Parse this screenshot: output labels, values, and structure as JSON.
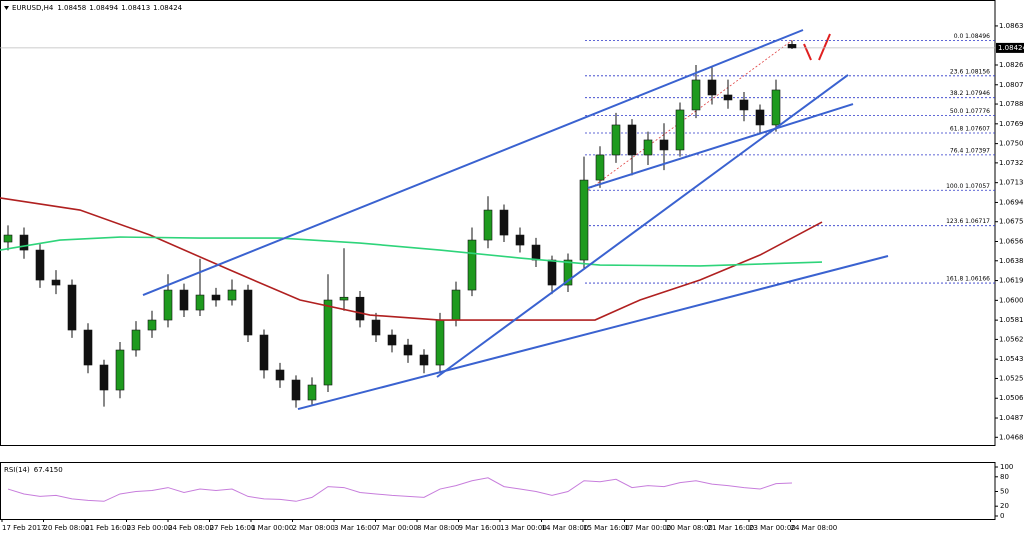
{
  "chart_data": {
    "type": "candlestick",
    "symbol": "EURUSD,H4",
    "up_color": "#1e9a1e",
    "down_color": "#111111",
    "ylim": [
      1.04611,
      1.08884
    ],
    "yticks": [
      1.08635,
      {
        "value": 1.0826,
        "label": "1.08260"
      },
      {
        "value": 1.0807,
        "label": "1.08070"
      },
      1.07885,
      1.07695,
      1.07505,
      {
        "value": 1.0732,
        "label": "1.07320"
      },
      {
        "value": 1.0713,
        "label": "1.07130"
      },
      {
        "value": 1.0694,
        "label": "1.06940"
      },
      1.06755,
      1.06565,
      {
        "value": 1.0638,
        "label": "1.06380"
      },
      {
        "value": 1.0619,
        "label": "1.06190"
      },
      {
        "value": 1.06,
        "label": "1.06000"
      },
      {
        "value": 1.0581,
        "label": "1.05810"
      },
      1.05625,
      1.05435,
      {
        "value": 1.0525,
        "label": "1.05250"
      },
      {
        "value": 1.0506,
        "label": "1.05060"
      },
      {
        "value": 1.0487,
        "label": "1.04870"
      },
      1.04685
    ],
    "last_price": 1.08424,
    "x_labels": [
      "17 Feb 2017",
      "20 Feb 08:00",
      "21 Feb 16:00",
      "23 Feb 00:00",
      "24 Feb 08:00",
      "27 Feb 16:00",
      "1 Mar 00:00",
      "2 Mar 08:00",
      "3 Mar 16:00",
      "7 Mar 00:00",
      "8 Mar 08:00",
      "9 Mar 16:00",
      "13 Mar 00:00",
      "14 Mar 08:00",
      "15 Mar 16:00",
      "17 Mar 00:00",
      "20 Mar 08:00",
      "21 Mar 16:00",
      "23 Mar 00:00",
      "24 Mar 08:00"
    ],
    "candles": {
      "open": [
        1.0656,
        1.06627,
        1.06483,
        1.06195,
        1.06147,
        1.05715,
        1.05379,
        1.05139,
        1.05523,
        1.05715,
        1.05811,
        1.06099,
        1.05907,
        1.06051,
        1.06003,
        1.06099,
        1.05667,
        1.05331,
        1.05235,
        1.05043,
        1.05187,
        1.06003,
        1.0603,
        1.05811,
        1.05667,
        1.05571,
        1.05475,
        1.05379,
        1.05811,
        1.06099,
        1.06579,
        1.06867,
        1.06627,
        1.06531,
        1.06387,
        1.06147,
        1.06387,
        1.07155,
        1.07396,
        1.07684,
        1.07396,
        1.0754,
        1.07444,
        1.07828,
        1.08116,
        1.07972,
        1.07924,
        1.07828,
        1.07684,
        1.08458
      ],
      "high": [
        1.0672,
        1.067,
        1.0654,
        1.0629,
        1.062,
        1.0578,
        1.0543,
        1.056,
        1.058,
        1.059,
        1.0625,
        1.0616,
        1.064,
        1.0612,
        1.062,
        1.0615,
        1.0572,
        1.054,
        1.0528,
        1.0526,
        1.0625,
        1.065,
        1.0609,
        1.0588,
        1.0572,
        1.0563,
        1.0553,
        1.0588,
        1.0618,
        1.067,
        1.07,
        1.0692,
        1.067,
        1.066,
        1.0643,
        1.0645,
        1.0738,
        1.0748,
        1.078,
        1.0774,
        1.0762,
        1.077,
        1.079,
        1.0826,
        1.0824,
        1.0812,
        1.08,
        1.0788,
        1.0812,
        1.08494
      ],
      "low": [
        1.0648,
        1.064,
        1.0612,
        1.0606,
        1.0564,
        1.053,
        1.0498,
        1.0506,
        1.0546,
        1.0564,
        1.0574,
        1.0584,
        1.0585,
        1.0594,
        1.0595,
        1.056,
        1.0525,
        1.0516,
        1.0497,
        1.05,
        1.0512,
        1.059,
        1.0574,
        1.056,
        1.055,
        1.054,
        1.053,
        1.053,
        1.0575,
        1.0604,
        1.065,
        1.0656,
        1.0646,
        1.0632,
        1.0606,
        1.0608,
        1.063,
        1.0708,
        1.0732,
        1.072,
        1.073,
        1.0725,
        1.0738,
        1.0775,
        1.0788,
        1.0784,
        1.0772,
        1.076,
        1.0762,
        1.08413
      ],
      "close": [
        1.06627,
        1.06483,
        1.06195,
        1.06147,
        1.05715,
        1.05379,
        1.05139,
        1.05523,
        1.05715,
        1.05811,
        1.06099,
        1.05907,
        1.06051,
        1.06003,
        1.06099,
        1.05667,
        1.05331,
        1.05235,
        1.05043,
        1.05187,
        1.06003,
        1.0603,
        1.05811,
        1.05667,
        1.05571,
        1.05475,
        1.05379,
        1.05811,
        1.06099,
        1.06579,
        1.06867,
        1.06627,
        1.06531,
        1.06387,
        1.06147,
        1.06387,
        1.07155,
        1.07396,
        1.07684,
        1.07396,
        1.0754,
        1.07444,
        1.07828,
        1.08116,
        1.07972,
        1.07924,
        1.07828,
        1.07684,
        1.0802,
        1.08424
      ]
    },
    "moving_averages": [
      {
        "color": "#b02020",
        "x": [
          -0.5,
          4.5,
          8.875,
          13.875,
          18.25,
          22.625,
          27,
          32,
          36.6875,
          39.5,
          43.25,
          47,
          50.875
        ],
        "values": [
          1.06983,
          1.06867,
          1.06627,
          1.06291,
          1.06003,
          1.05859,
          1.05811,
          1.05811,
          1.05811,
          1.06003,
          1.06195,
          1.06435,
          1.06752
        ]
      },
      {
        "color": "#2ed47a",
        "x": [
          -0.5,
          3.25,
          7,
          12,
          17,
          22,
          27,
          32,
          37,
          43.25,
          50.875
        ],
        "values": [
          1.06483,
          1.06579,
          1.06608,
          1.06598,
          1.06598,
          1.0655,
          1.06483,
          1.06406,
          1.06339,
          1.0633,
          1.06368
        ]
      }
    ],
    "trendlines": [
      {
        "color": "#3a62d0",
        "x": [
          8.4375,
          49.6875
        ],
        "values": [
          1.06051,
          1.08596
        ]
      },
      {
        "color": "#3a62d0",
        "x": [
          18.125,
          55
        ],
        "values": [
          1.04956,
          1.06426
        ]
      },
      {
        "color": "#3a62d0",
        "x": [
          26.8125,
          52.5
        ],
        "values": [
          1.05264,
          1.08164
        ]
      },
      {
        "color": "#3a62d0",
        "x": [
          36.25,
          52.8125
        ],
        "values": [
          1.07079,
          1.07885
        ]
      }
    ],
    "fib_levels": [
      {
        "label": "0.0 1.08496",
        "value": 1.08496
      },
      {
        "label": "23.6 1.08156",
        "value": 1.08156
      },
      {
        "label": "38.2 1.07946",
        "value": 1.07946
      },
      {
        "label": "50.0 1.07776",
        "value": 1.07776
      },
      {
        "label": "61.8 1.07607",
        "value": 1.07607
      },
      {
        "label": "76.4 1.07397",
        "value": 1.07397
      },
      {
        "label": "100.0 1.07057",
        "value": 1.07057
      },
      {
        "label": "123.6 1.06717",
        "value": 1.06717
      },
      {
        "label": "161.8 1.06166",
        "value": 1.06166
      }
    ],
    "rsi": {
      "name": "RSI(14)",
      "current_label": "67.4150",
      "color": "#c77ddc",
      "ylim": [
        0,
        100
      ],
      "yticks": [
        100,
        80,
        50,
        20,
        0
      ],
      "values": [
        55,
        45,
        40,
        42,
        35,
        32,
        30,
        45,
        50,
        52,
        58,
        48,
        55,
        52,
        55,
        40,
        35,
        34,
        30,
        38,
        60,
        58,
        48,
        45,
        42,
        40,
        38,
        55,
        62,
        72,
        78,
        60,
        55,
        50,
        42,
        50,
        72,
        70,
        75,
        58,
        62,
        60,
        68,
        72,
        65,
        62,
        58,
        55,
        66,
        67.415
      ]
    }
  }
}
